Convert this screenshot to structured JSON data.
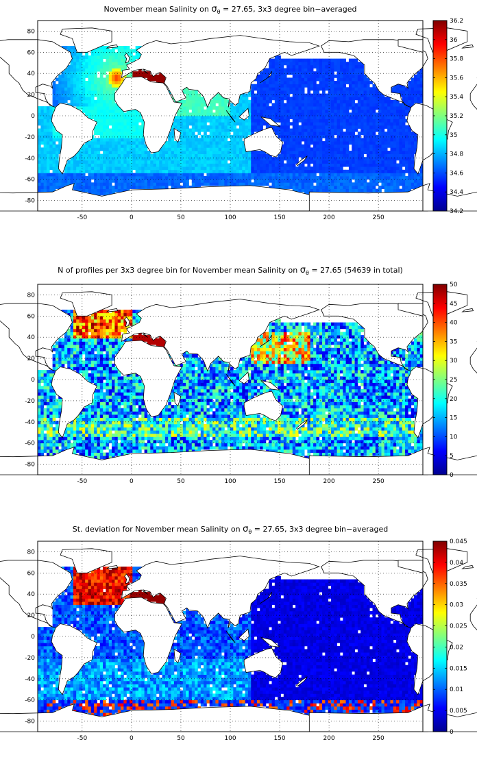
{
  "panels": [
    {
      "title_prefix": "November mean Salinity on ",
      "title_sigma": "σ",
      "title_sub": "θ",
      "title_suffix": " = 27.65, 3x3 degree bin−averaged",
      "colorbar": {
        "min": 34.2,
        "max": 36.2,
        "ticks": [
          "34.2",
          "34.4",
          "34.6",
          "34.8",
          "35",
          "35.2",
          "35.4",
          "35.6",
          "35.8",
          "36",
          "36.2"
        ]
      }
    },
    {
      "title_prefix": "N of profiles per 3x3 degree bin for November mean Salinity on ",
      "title_sigma": "σ",
      "title_sub": "θ",
      "title_suffix": " = 27.65 (54639 in total)",
      "colorbar": {
        "min": 0,
        "max": 50,
        "ticks": [
          "0",
          "5",
          "10",
          "15",
          "20",
          "25",
          "30",
          "35",
          "40",
          "45",
          "50"
        ]
      }
    },
    {
      "title_prefix": "St. deviation for November mean Salinity on ",
      "title_sigma": "σ",
      "title_sub": "θ",
      "title_suffix": " = 27.65, 3x3 degree bin−averaged",
      "colorbar": {
        "min": 0,
        "max": 0.045,
        "ticks": [
          "0",
          "0.005",
          "0.01",
          "0.015",
          "0.02",
          "0.025",
          "0.03",
          "0.035",
          "0.04",
          "0.045"
        ]
      }
    }
  ],
  "map": {
    "lon_range": [
      -95,
      295
    ],
    "lat_range": [
      -90,
      90
    ],
    "xticks": [
      "-50",
      "0",
      "50",
      "100",
      "150",
      "200",
      "250"
    ],
    "yticks": [
      "-80",
      "-60",
      "-40",
      "-20",
      "0",
      "20",
      "40",
      "60",
      "80"
    ]
  }
}
